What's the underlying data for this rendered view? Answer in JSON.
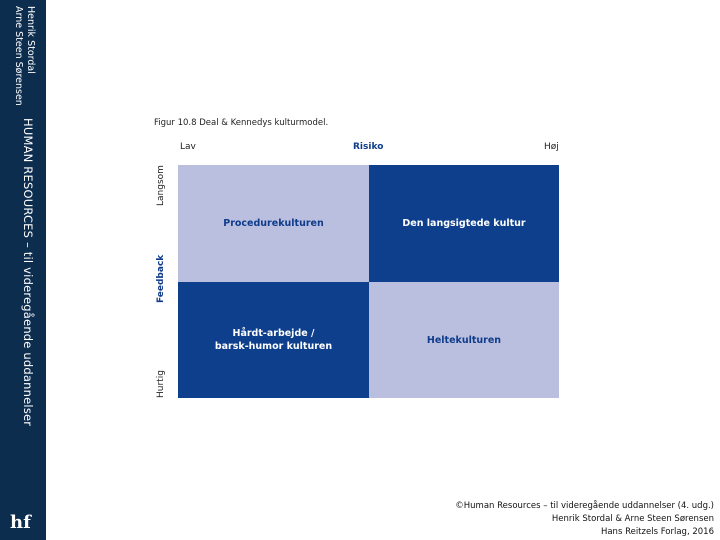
{
  "sidebar": {
    "author_line_1": "Henrik Stordal",
    "author_line_2": "Arne Steen Sørensen",
    "series_title": "HUMAN RESOURCES – til videregående uddannelser",
    "logo": "hf"
  },
  "figure": {
    "caption": "Figur 10.8 Deal & Kennedys kulturmodel.",
    "x_axis": {
      "low": "Lav",
      "title": "Risiko",
      "high": "Høj"
    },
    "y_axis": {
      "top": "Langsom",
      "title": "Feedback",
      "bottom": "Hurtig"
    },
    "quadrants": {
      "top_left": "Procedurekulturen",
      "top_right": "Den langsigtede kultur",
      "bottom_left": "Hårdt-arbejde /\nbarsk-humor kulturen",
      "bottom_right": "Heltekulturen"
    },
    "colors": {
      "light": "#babfdf",
      "dark": "#0e3f8c"
    }
  },
  "footer": {
    "line_1": "©Human Resources – til videregående uddannelser (4. udg.)",
    "line_2": "Henrik Stordal & Arne Steen Sørensen",
    "line_3": "Hans Reitzels Forlag, 2016"
  }
}
